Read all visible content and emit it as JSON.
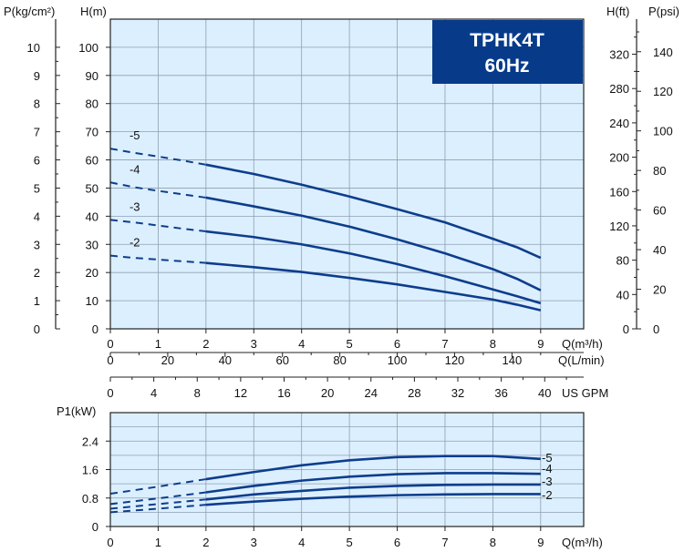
{
  "colors": {
    "plot_bg": "#dcefff",
    "grid": "#8f9fb0",
    "curve": "#0d3d8c",
    "badge": "#073b8a",
    "badge_text": "#ffffff"
  },
  "badge": {
    "line1": "TPHK4T",
    "line2": "60Hz"
  },
  "chart_data": [
    {
      "type": "line",
      "title": "",
      "ylabel": "H(m)",
      "left_axis_label": "P(kg/cm²)",
      "right_axis_labels": [
        "H(ft)",
        "P(psi)"
      ],
      "x_axes": [
        {
          "label": "Q(m³/h)",
          "ticks": [
            "0",
            "1",
            "2",
            "3",
            "4",
            "5",
            "6",
            "7",
            "8",
            "9"
          ]
        },
        {
          "label": "Q(L/min)",
          "ticks": [
            "0",
            "20",
            "40",
            "60",
            "80",
            "100",
            "120",
            "140"
          ]
        },
        {
          "label": "US GPM",
          "ticks": [
            "0",
            "4",
            "8",
            "12",
            "16",
            "20",
            "24",
            "28",
            "32",
            "36",
            "40"
          ]
        }
      ],
      "xlim": [
        0,
        9.9
      ],
      "ylim": [
        0,
        110
      ],
      "y_ticks": [
        "0",
        "10",
        "20",
        "30",
        "40",
        "50",
        "60",
        "70",
        "80",
        "90",
        "100"
      ],
      "p_kg_ticks": [
        "0",
        "1",
        "2",
        "3",
        "4",
        "5",
        "6",
        "7",
        "8",
        "9",
        "10"
      ],
      "h_ft_ticks": [
        "0",
        "40",
        "80",
        "120",
        "160",
        "200",
        "240",
        "280",
        "320"
      ],
      "p_psi_ticks": [
        "0",
        "20",
        "40",
        "60",
        "80",
        "100",
        "120",
        "140"
      ],
      "grid": true,
      "series": [
        {
          "name": "-5",
          "dashed_x": [
            0,
            0.5,
            1,
            1.5,
            2
          ],
          "dashed_y": [
            64,
            62.5,
            61.2,
            59.8,
            58.3
          ],
          "x": [
            2,
            3,
            4,
            5,
            6,
            7,
            8,
            8.5,
            9
          ],
          "y": [
            58.3,
            55,
            51.2,
            47,
            42.5,
            37.8,
            32,
            29,
            25.2
          ]
        },
        {
          "name": "-4",
          "dashed_x": [
            0,
            0.5,
            1,
            1.5,
            2
          ],
          "dashed_y": [
            52,
            50.3,
            49,
            47.8,
            46.6
          ],
          "x": [
            2,
            3,
            4,
            5,
            6,
            7,
            8,
            8.5,
            9
          ],
          "y": [
            46.6,
            43.5,
            40.2,
            36.3,
            31.8,
            26.8,
            21.2,
            17.8,
            13.7
          ]
        },
        {
          "name": "-3",
          "dashed_x": [
            0,
            0.5,
            1,
            1.5,
            2
          ],
          "dashed_y": [
            38.7,
            37.8,
            36.7,
            35.6,
            34.6
          ],
          "x": [
            2,
            3,
            4,
            5,
            6,
            7,
            8,
            8.5,
            9
          ],
          "y": [
            34.6,
            32.6,
            30,
            26.8,
            23,
            18.7,
            14,
            11.6,
            9.1
          ]
        },
        {
          "name": "-2",
          "dashed_x": [
            0,
            0.5,
            1,
            1.5,
            2
          ],
          "dashed_y": [
            26,
            25.2,
            24.6,
            24,
            23.4
          ],
          "x": [
            2,
            3,
            4,
            5,
            6,
            7,
            8,
            8.5,
            9
          ],
          "y": [
            23.4,
            21.9,
            20.2,
            18.1,
            15.8,
            13.1,
            10.4,
            8.6,
            6.6
          ]
        }
      ]
    },
    {
      "type": "line",
      "title": "",
      "ylabel": "P1(kW)",
      "xlabel": "Q(m³/h)",
      "x_ticks": [
        "0",
        "1",
        "2",
        "3",
        "4",
        "5",
        "6",
        "7",
        "8",
        "9"
      ],
      "xlim": [
        0,
        9.9
      ],
      "y_ticks": [
        "0",
        "0.8",
        "1.6",
        "2.4"
      ],
      "ylim": [
        0,
        3.2
      ],
      "grid": true,
      "series": [
        {
          "name": "-5",
          "dashed_x": [
            0,
            1,
            2
          ],
          "dashed_y": [
            0.92,
            1.12,
            1.33
          ],
          "x": [
            2,
            3,
            4,
            5,
            6,
            7,
            8,
            9
          ],
          "y": [
            1.33,
            1.53,
            1.72,
            1.86,
            1.95,
            1.98,
            1.98,
            1.9
          ]
        },
        {
          "name": "-4",
          "dashed_x": [
            0,
            1,
            2
          ],
          "dashed_y": [
            0.63,
            0.79,
            0.96
          ],
          "x": [
            2,
            3,
            4,
            5,
            6,
            7,
            8,
            9
          ],
          "y": [
            0.96,
            1.14,
            1.29,
            1.4,
            1.47,
            1.5,
            1.5,
            1.48
          ]
        },
        {
          "name": "-3",
          "dashed_x": [
            0,
            1,
            2
          ],
          "dashed_y": [
            0.5,
            0.63,
            0.76
          ],
          "x": [
            2,
            3,
            4,
            5,
            6,
            7,
            8,
            9
          ],
          "y": [
            0.76,
            0.9,
            1.0,
            1.09,
            1.14,
            1.17,
            1.18,
            1.18
          ]
        },
        {
          "name": "-2",
          "dashed_x": [
            0,
            1,
            2
          ],
          "dashed_y": [
            0.4,
            0.5,
            0.61
          ],
          "x": [
            2,
            3,
            4,
            5,
            6,
            7,
            8,
            9
          ],
          "y": [
            0.61,
            0.7,
            0.78,
            0.84,
            0.88,
            0.9,
            0.91,
            0.91
          ]
        }
      ]
    }
  ]
}
